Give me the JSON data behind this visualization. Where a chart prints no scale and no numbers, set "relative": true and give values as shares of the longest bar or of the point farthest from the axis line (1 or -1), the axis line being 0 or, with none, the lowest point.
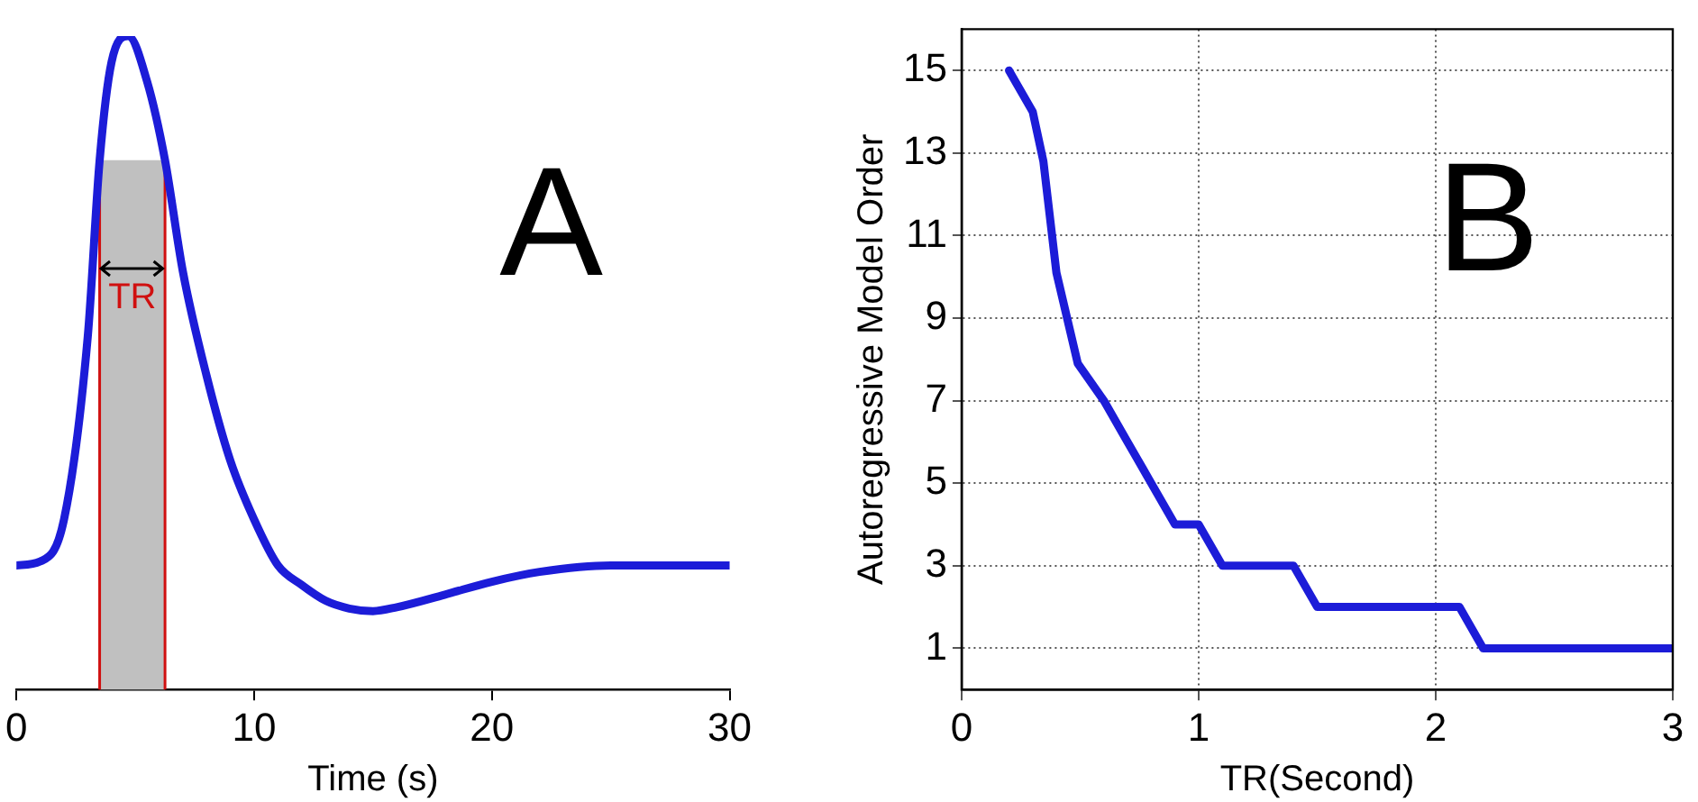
{
  "chart_data": [
    {
      "type": "line",
      "relative": true,
      "xlabel": "Time (s)",
      "xlim": [
        0,
        30
      ],
      "xticks": [
        0,
        10,
        20,
        30
      ],
      "tick_labels": "x",
      "grid": false,
      "legend": false,
      "marker": "none",
      "x": [
        0,
        1,
        2,
        3,
        3.5,
        4,
        4.7,
        5.5,
        6.25,
        7,
        8,
        9,
        10,
        11,
        12,
        13,
        14,
        15,
        16,
        18,
        20,
        22,
        25,
        30
      ],
      "series": [
        {
          "color": "#1c1cd8",
          "values": [
            0.19,
            0.196,
            0.26,
            0.54,
            0.81,
            0.96,
            1,
            0.93,
            0.81,
            0.64,
            0.48,
            0.35,
            0.26,
            0.19,
            0.16,
            0.136,
            0.124,
            0.12,
            0.126,
            0.145,
            0.165,
            0.18,
            0.19,
            0.19
          ]
        }
      ],
      "bands": [
        {
          "axis": "x",
          "from": 3.5,
          "to": 6.25,
          "color": "#c0c0c0"
        }
      ],
      "ref_lines": [
        {
          "axis": "x",
          "value": 3.5,
          "color": "#d01010"
        },
        {
          "axis": "x",
          "value": 6.25,
          "color": "#d01010"
        }
      ],
      "annotations": [
        "A",
        "TR"
      ]
    },
    {
      "type": "line",
      "xlabel": "TR(Second)",
      "ylabel": "Autoregressive Model Order",
      "xlim": [
        0,
        3
      ],
      "xticks": [
        0,
        1,
        2,
        3
      ],
      "ylim": [
        0,
        16
      ],
      "yticks": [
        1,
        3,
        5,
        7,
        9,
        11,
        13,
        15
      ],
      "grid": true,
      "legend": false,
      "marker": "none",
      "x": [
        0.2,
        0.3,
        0.345,
        0.4,
        0.49,
        0.6,
        0.7,
        0.8,
        0.9,
        1.0,
        1.1,
        1.4,
        1.5,
        2.1,
        2.2,
        3
      ],
      "series": [
        {
          "color": "#1c1cd8",
          "values": [
            15,
            14,
            12.8,
            10.1,
            7.9,
            7,
            6,
            5,
            4,
            4,
            3,
            3,
            2,
            2,
            1,
            1
          ]
        }
      ],
      "annotations": [
        "B"
      ]
    }
  ]
}
